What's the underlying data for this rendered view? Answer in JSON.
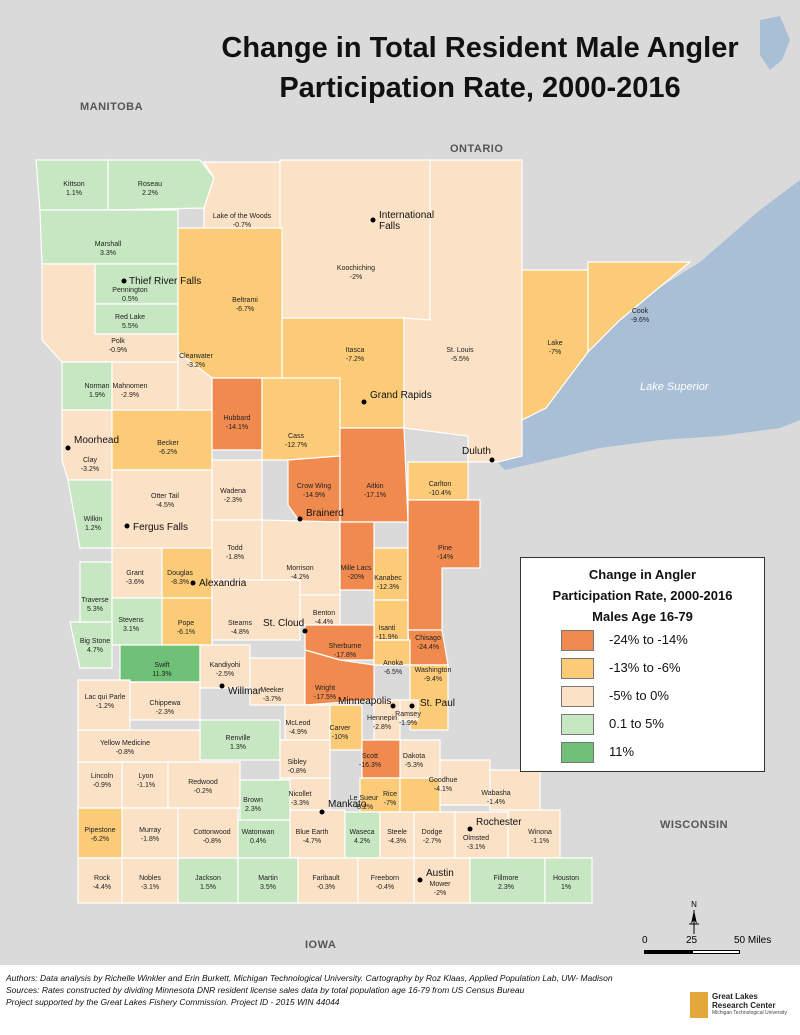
{
  "title_line1": "Change in Total Resident Male Angler",
  "title_line2": "Participation Rate, 2000-2016",
  "regions": {
    "manitoba": "MANITOBA",
    "ontario": "ONTARIO",
    "wisconsin": "WISCONSIN",
    "iowa": "IOWA"
  },
  "lake_superior": "Lake Superior",
  "legend": {
    "title_line1": "Change in Angler",
    "title_line2": "Participation Rate, 2000-2016",
    "title_line3": "Males Age 16-79",
    "items": [
      {
        "label": "-24% to -14%",
        "color": "#f08a4e"
      },
      {
        "label": "-13% to -6%",
        "color": "#fbcb78"
      },
      {
        "label": "-5% to 0%",
        "color": "#fbe1c6"
      },
      {
        "label": "0.1 to 5%",
        "color": "#c7e6c2"
      },
      {
        "label": "11%",
        "color": "#6ec176"
      }
    ]
  },
  "colors": {
    "water": "#a9bfd6",
    "land": "#dadada",
    "background": "#ffffff"
  },
  "counties": [
    {
      "name": "Kittson",
      "value": "1.1%"
    },
    {
      "name": "Roseau",
      "value": "2.2%"
    },
    {
      "name": "Lake of the Woods",
      "value": "-0.7%"
    },
    {
      "name": "Koochiching",
      "value": "-2%"
    },
    {
      "name": "Marshall",
      "value": "3.3%"
    },
    {
      "name": "Pennington",
      "value": "0.5%"
    },
    {
      "name": "Red Lake",
      "value": "5.5%"
    },
    {
      "name": "Beltrami",
      "value": "-6.7%"
    },
    {
      "name": "Polk",
      "value": "-0.9%"
    },
    {
      "name": "Clearwater",
      "value": "-3.2%"
    },
    {
      "name": "Itasca",
      "value": "-7.2%"
    },
    {
      "name": "St. Louis",
      "value": "-5.5%"
    },
    {
      "name": "Lake",
      "value": "-7%"
    },
    {
      "name": "Cook",
      "value": "-9.6%"
    },
    {
      "name": "Norman",
      "value": "1.9%"
    },
    {
      "name": "Mahnomen",
      "value": "-2.9%"
    },
    {
      "name": "Hubbard",
      "value": "-14.1%"
    },
    {
      "name": "Cass",
      "value": "-12.7%"
    },
    {
      "name": "Clay",
      "value": "-3.2%"
    },
    {
      "name": "Becker",
      "value": "-6.2%"
    },
    {
      "name": "Crow Wing",
      "value": "-14.9%"
    },
    {
      "name": "Aitkin",
      "value": "-17.1%"
    },
    {
      "name": "Carlton",
      "value": "-10.4%"
    },
    {
      "name": "Wadena",
      "value": "-2.3%"
    },
    {
      "name": "Otter Tail",
      "value": "-4.5%"
    },
    {
      "name": "Wilkin",
      "value": "1.2%"
    },
    {
      "name": "Todd",
      "value": "-1.8%"
    },
    {
      "name": "Morrison",
      "value": "-4.2%"
    },
    {
      "name": "Mille Lacs",
      "value": "-20%"
    },
    {
      "name": "Kanabec",
      "value": "-12.3%"
    },
    {
      "name": "Pine",
      "value": "-14%"
    },
    {
      "name": "Grant",
      "value": "-3.6%"
    },
    {
      "name": "Douglas",
      "value": "-8.3%"
    },
    {
      "name": "Traverse",
      "value": "5.3%"
    },
    {
      "name": "Stevens",
      "value": "3.1%"
    },
    {
      "name": "Pope",
      "value": "-6.1%"
    },
    {
      "name": "Stearns",
      "value": "-4.8%"
    },
    {
      "name": "Benton",
      "value": "-4.4%"
    },
    {
      "name": "Isanti",
      "value": "-11.9%"
    },
    {
      "name": "Chisago",
      "value": "-24.4%"
    },
    {
      "name": "Big Stone",
      "value": "4.7%"
    },
    {
      "name": "Swift",
      "value": "11.3%"
    },
    {
      "name": "Kandiyohi",
      "value": "-2.5%"
    },
    {
      "name": "Sherburne",
      "value": "-17.8%"
    },
    {
      "name": "Anoka",
      "value": "-6.5%"
    },
    {
      "name": "Washington",
      "value": "-9.4%"
    },
    {
      "name": "Meeker",
      "value": "-3.7%"
    },
    {
      "name": "Wright",
      "value": "-17.5%"
    },
    {
      "name": "Lac qui Parle",
      "value": "-1.2%"
    },
    {
      "name": "Chippewa",
      "value": "-2.3%"
    },
    {
      "name": "Ramsey",
      "value": "-1.9%"
    },
    {
      "name": "Hennepin",
      "value": "-2.8%"
    },
    {
      "name": "McLeod",
      "value": "-4.9%"
    },
    {
      "name": "Carver",
      "value": "-10%"
    },
    {
      "name": "Renville",
      "value": "1.3%"
    },
    {
      "name": "Yellow Medicine",
      "value": "-0.8%"
    },
    {
      "name": "Dakota",
      "value": "-5.3%"
    },
    {
      "name": "Scott",
      "value": "-16.3%"
    },
    {
      "name": "Sibley",
      "value": "-0.8%"
    },
    {
      "name": "Lincoln",
      "value": "-0.9%"
    },
    {
      "name": "Lyon",
      "value": "-1.1%"
    },
    {
      "name": "Redwood",
      "value": "-0.2%"
    },
    {
      "name": "Goodhue",
      "value": "-4.1%"
    },
    {
      "name": "Wabasha",
      "value": "-1.4%"
    },
    {
      "name": "Nicollet",
      "value": "-3.3%"
    },
    {
      "name": "Le Sueur",
      "value": "-8.2%"
    },
    {
      "name": "Rice",
      "value": "-7%"
    },
    {
      "name": "Brown",
      "value": "2.3%"
    },
    {
      "name": "Pipestone",
      "value": "-6.2%"
    },
    {
      "name": "Murray",
      "value": "-1.8%"
    },
    {
      "name": "Cottonwood",
      "value": "-0.8%"
    },
    {
      "name": "Watonwan",
      "value": "0.4%"
    },
    {
      "name": "Blue Earth",
      "value": "-4.7%"
    },
    {
      "name": "Waseca",
      "value": "4.2%"
    },
    {
      "name": "Steele",
      "value": "-4.3%"
    },
    {
      "name": "Dodge",
      "value": "-2.7%"
    },
    {
      "name": "Olmsted",
      "value": "-3.1%"
    },
    {
      "name": "Winona",
      "value": "-1.1%"
    },
    {
      "name": "Rock",
      "value": "-4.4%"
    },
    {
      "name": "Nobles",
      "value": "-3.1%"
    },
    {
      "name": "Jackson",
      "value": "1.5%"
    },
    {
      "name": "Martin",
      "value": "3.5%"
    },
    {
      "name": "Faribault",
      "value": "-0.3%"
    },
    {
      "name": "Freeborn",
      "value": "-0.4%"
    },
    {
      "name": "Mower",
      "value": "-2%"
    },
    {
      "name": "Fillmore",
      "value": "2.3%"
    },
    {
      "name": "Houston",
      "value": "1%"
    }
  ],
  "cities": [
    {
      "name": "International Falls"
    },
    {
      "name": "Thief River Falls"
    },
    {
      "name": "Grand Rapids"
    },
    {
      "name": "Moorhead"
    },
    {
      "name": "Duluth"
    },
    {
      "name": "Brainerd"
    },
    {
      "name": "Fergus Falls"
    },
    {
      "name": "Alexandria"
    },
    {
      "name": "St. Cloud"
    },
    {
      "name": "Willmar"
    },
    {
      "name": "Minneapolis"
    },
    {
      "name": "St. Paul"
    },
    {
      "name": "Mankato"
    },
    {
      "name": "Rochester"
    },
    {
      "name": "Austin"
    }
  ],
  "scale": {
    "zero": "0",
    "mid": "25",
    "end": "50 Miles"
  },
  "north": "N",
  "logo": {
    "line1": "Great Lakes",
    "line2": "Research Center",
    "sub": "Michigan Technological University"
  },
  "credits": [
    "Authors: Data analysis by Richelle Winkler and Erin Burkett, Michigan Technological University. Cartography by Roz Klaas, Applied Population Lab, UW- Madison",
    "Sources: Rates constructed by dividing Minnesota DNR resident license sales data by total population age 16-79 from US Census Bureau",
    "Project supported by the Great Lakes Fishery Commission. Project ID - 2015 WIN 44044"
  ]
}
